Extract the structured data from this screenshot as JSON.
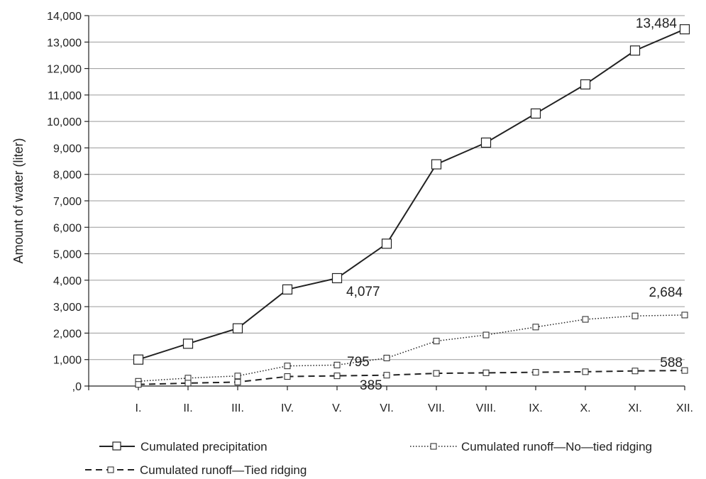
{
  "chart_data": {
    "type": "line",
    "title": "",
    "xlabel": "",
    "ylabel": "Amount of water (liter)",
    "categories": [
      "I.",
      "II.",
      "III.",
      "IV.",
      "V.",
      "VI.",
      "VII.",
      "VIII.",
      "IX.",
      "X.",
      "XI.",
      "XII."
    ],
    "y_ticks": [
      ",0",
      "1,000",
      "2,000",
      "3,000",
      "4,000",
      "5,000",
      "6,000",
      "7,000",
      "8,000",
      "9,000",
      "10,000",
      "11,000",
      "12,000",
      "13,000",
      "14,000"
    ],
    "ylim": [
      0,
      14000
    ],
    "grid": true,
    "legend_position": "bottom",
    "series": [
      {
        "name": "Cumulated precipitation",
        "line_style": "solid",
        "marker": "square",
        "color": "#222222",
        "values": [
          1000,
          1600,
          2180,
          3650,
          4077,
          5380,
          8380,
          9200,
          10300,
          11400,
          12680,
          13484
        ]
      },
      {
        "name": "Cumulated runoff—No—tied ridging",
        "line_style": "dotted",
        "marker": "small-square",
        "color": "#222222",
        "values": [
          180,
          300,
          380,
          760,
          795,
          1060,
          1700,
          1930,
          2230,
          2520,
          2650,
          2684
        ]
      },
      {
        "name": "Cumulated runoff—Tied ridging",
        "line_style": "dashed",
        "marker": "small-square",
        "color": "#222222",
        "values": [
          60,
          110,
          150,
          360,
          385,
          410,
          480,
          500,
          520,
          540,
          570,
          588
        ]
      }
    ],
    "annotations": [
      "13,484",
      "4,077",
      "2,684",
      "795",
      "588",
      "385"
    ]
  }
}
